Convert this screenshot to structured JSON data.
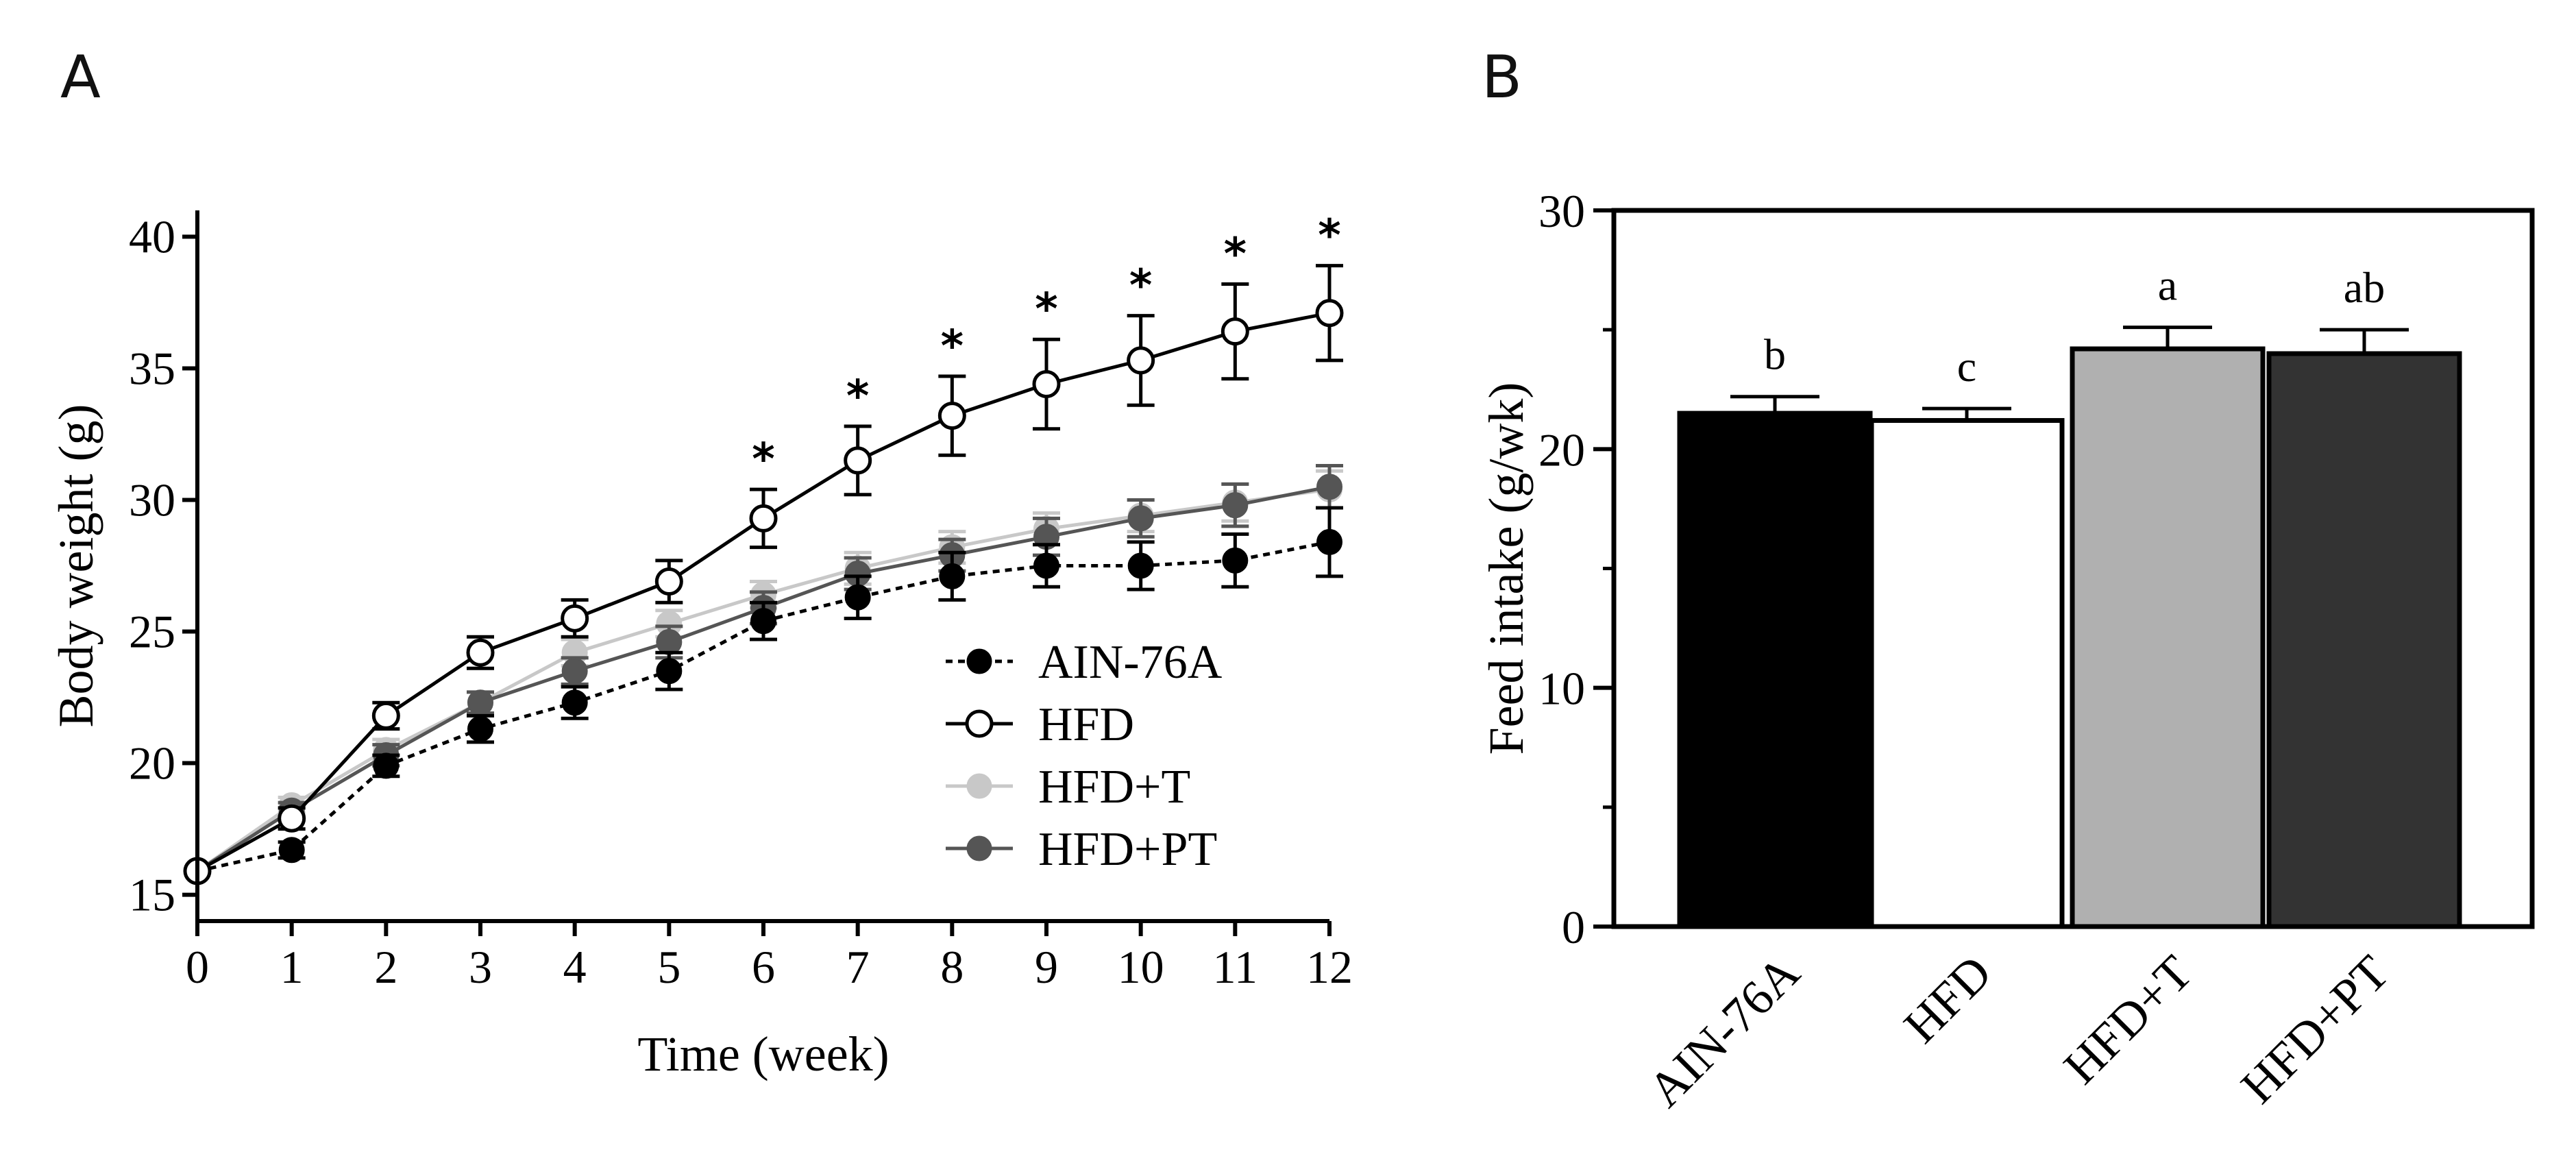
{
  "chart_data": [
    {
      "panel": "A",
      "type": "line",
      "xlabel": "Time (week)",
      "ylabel": "Body weight (g)",
      "xlim": [
        0,
        12
      ],
      "ylim": [
        14,
        41
      ],
      "xticks": [
        0,
        1,
        2,
        3,
        4,
        5,
        6,
        7,
        8,
        9,
        10,
        11,
        12
      ],
      "yticks": [
        15,
        20,
        25,
        30,
        35,
        40
      ],
      "legend_position": "bottom-right",
      "significance_marker": "*",
      "significant_weeks": [
        6,
        7,
        8,
        9,
        10,
        11,
        12
      ],
      "series": [
        {
          "name": "AIN-76A",
          "marker": "filled",
          "line": "dashed",
          "color": "#000000",
          "x": [
            0,
            1,
            2,
            3,
            4,
            5,
            6,
            7,
            8,
            9,
            10,
            11,
            12
          ],
          "y": [
            15.9,
            16.7,
            19.9,
            21.3,
            22.3,
            23.5,
            25.4,
            26.3,
            27.1,
            27.5,
            27.5,
            27.7,
            28.4
          ],
          "error": [
            0.0,
            0.3,
            0.4,
            0.5,
            0.6,
            0.7,
            0.7,
            0.8,
            0.9,
            0.8,
            0.9,
            1.0,
            1.3
          ]
        },
        {
          "name": "HFD",
          "marker": "open",
          "line": "solid",
          "color": "#000000",
          "x": [
            0,
            1,
            2,
            3,
            4,
            5,
            6,
            7,
            8,
            9,
            10,
            11,
            12
          ],
          "y": [
            15.9,
            17.9,
            21.8,
            24.2,
            25.5,
            26.9,
            29.3,
            31.5,
            33.2,
            34.4,
            35.3,
            36.4,
            37.1
          ],
          "error": [
            0.0,
            0.4,
            0.5,
            0.6,
            0.7,
            0.8,
            1.1,
            1.3,
            1.5,
            1.7,
            1.7,
            1.8,
            1.8
          ]
        },
        {
          "name": "HFD+T",
          "marker": "filled",
          "line": "solid",
          "color": "#c8c8c8",
          "x": [
            0,
            1,
            2,
            3,
            4,
            5,
            6,
            7,
            8,
            9,
            10,
            11,
            12
          ],
          "y": [
            15.9,
            18.4,
            20.5,
            22.3,
            24.2,
            25.3,
            26.4,
            27.4,
            28.2,
            28.9,
            29.4,
            29.9,
            30.4
          ],
          "error": [
            0.0,
            0.3,
            0.4,
            0.4,
            0.5,
            0.5,
            0.5,
            0.6,
            0.6,
            0.6,
            0.6,
            0.7,
            0.7
          ]
        },
        {
          "name": "HFD+PT",
          "marker": "filled",
          "line": "solid",
          "color": "#555555",
          "x": [
            0,
            1,
            2,
            3,
            4,
            5,
            6,
            7,
            8,
            9,
            10,
            11,
            12
          ],
          "y": [
            15.9,
            18.2,
            20.3,
            22.3,
            23.5,
            24.6,
            25.9,
            27.2,
            27.9,
            28.6,
            29.3,
            29.8,
            30.5
          ],
          "error": [
            0.0,
            0.3,
            0.4,
            0.4,
            0.5,
            0.6,
            0.6,
            0.6,
            0.6,
            0.7,
            0.7,
            0.8,
            0.8
          ]
        }
      ]
    },
    {
      "panel": "B",
      "type": "bar",
      "xlabel": "",
      "ylabel": "Feed intake (g/wk)",
      "ylim": [
        0,
        30
      ],
      "yticks": [
        0,
        10,
        20,
        30
      ],
      "categories": [
        "AIN-76A",
        "HFD",
        "HFD+T",
        "HFD+PT"
      ],
      "values": [
        21.5,
        21.2,
        24.2,
        24.0
      ],
      "errors": [
        0.7,
        0.5,
        0.9,
        1.0
      ],
      "significance_letters": [
        "b",
        "c",
        "a",
        "ab"
      ],
      "colors": [
        "#000000",
        "#ffffff",
        "#b0b0b0",
        "#333333"
      ]
    }
  ]
}
